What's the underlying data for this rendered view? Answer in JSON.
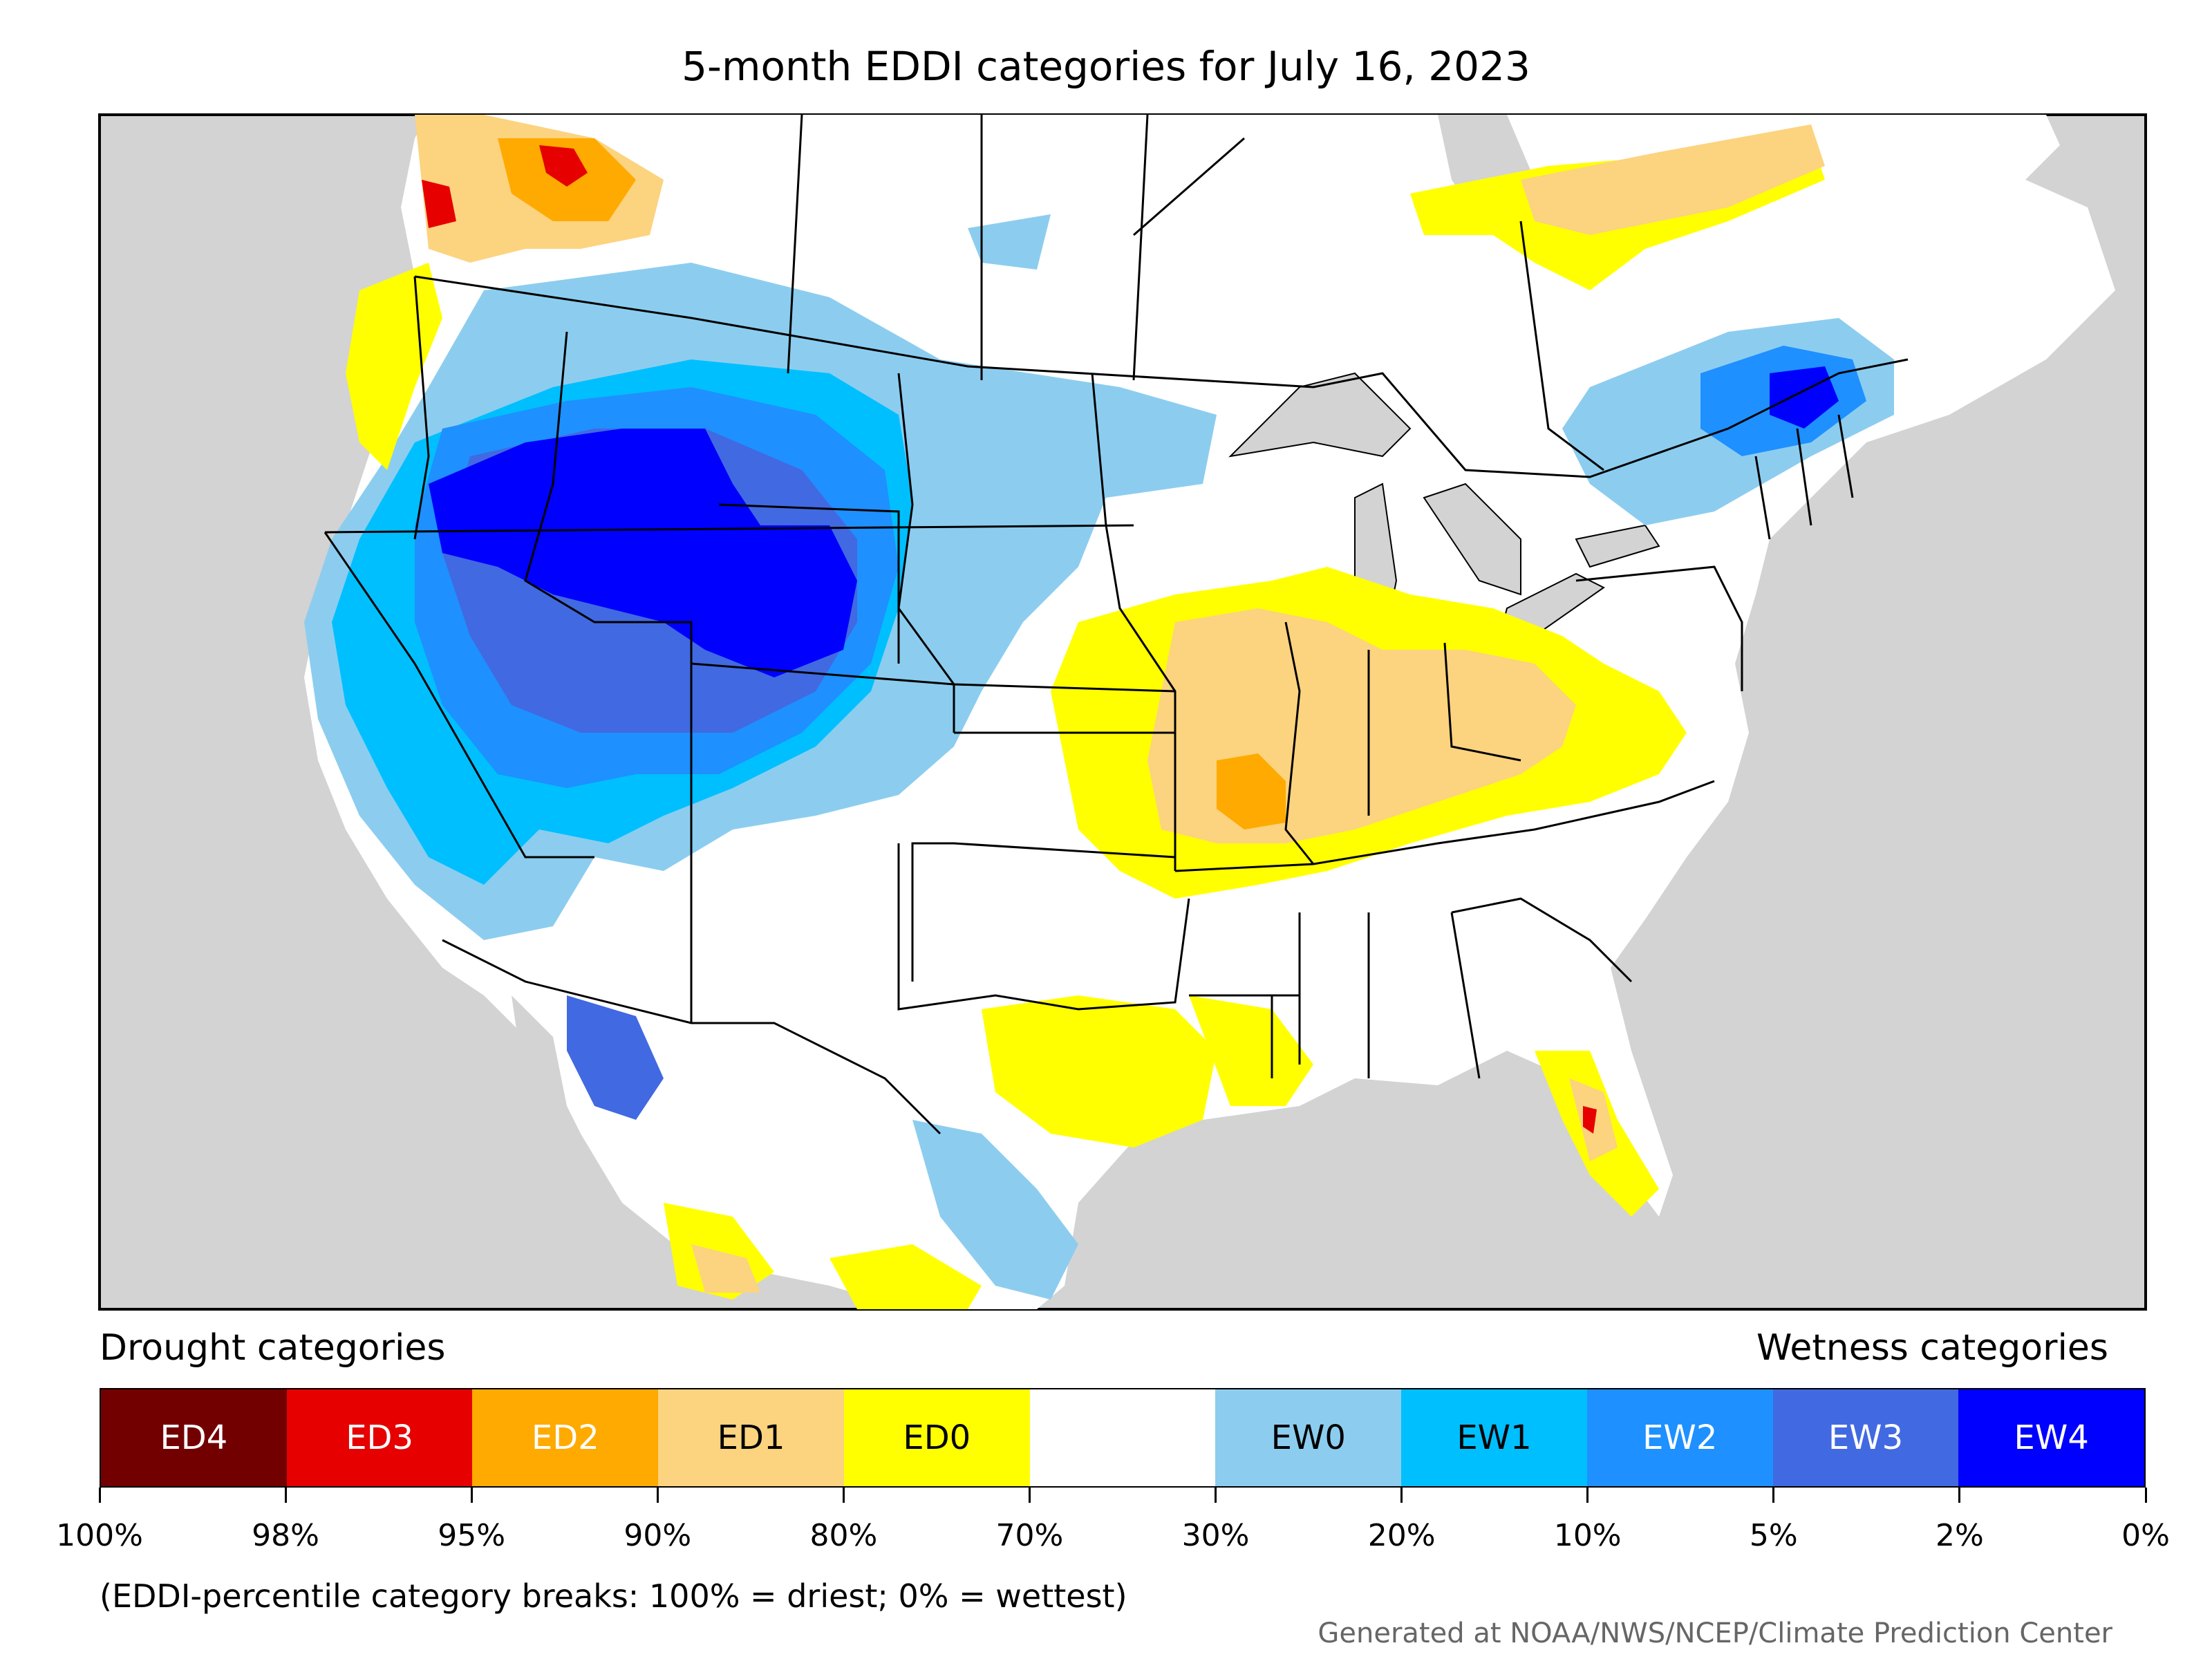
{
  "title": "5-month EDDI categories for July 16, 2023",
  "legend": {
    "drought_title": "Drought categories",
    "wetness_title": "Wetness categories",
    "categories": [
      {
        "label": "ED4",
        "color": "#730000",
        "text_color": "#ffffff"
      },
      {
        "label": "ED3",
        "color": "#e60000",
        "text_color": "#ffffff"
      },
      {
        "label": "ED2",
        "color": "#ffaa00",
        "text_color": "#ffffff"
      },
      {
        "label": "ED1",
        "color": "#fcd37f",
        "text_color": "#000000"
      },
      {
        "label": "ED0",
        "color": "#ffff00",
        "text_color": "#000000"
      },
      {
        "label": "",
        "color": "#ffffff",
        "text_color": "#000000"
      },
      {
        "label": "EW0",
        "color": "#8ccdef",
        "text_color": "#000000"
      },
      {
        "label": "EW1",
        "color": "#00bfff",
        "text_color": "#000000"
      },
      {
        "label": "EW2",
        "color": "#1e90ff",
        "text_color": "#ffffff"
      },
      {
        "label": "EW3",
        "color": "#4169e1",
        "text_color": "#ffffff"
      },
      {
        "label": "EW4",
        "color": "#0000ff",
        "text_color": "#ffffff"
      }
    ],
    "ticks": [
      "100%",
      "98%",
      "95%",
      "90%",
      "80%",
      "70%",
      "30%",
      "20%",
      "10%",
      "5%",
      "2%",
      "0%"
    ]
  },
  "note": "(EDDI-percentile category breaks: 100% = driest; 0% = wettest)",
  "credit": "Generated at NOAA/NWS/NCEP/Climate Prediction Center",
  "map_colors": {
    "ocean": "#d3d3d3",
    "land": "#ffffff",
    "border": "#000000"
  }
}
